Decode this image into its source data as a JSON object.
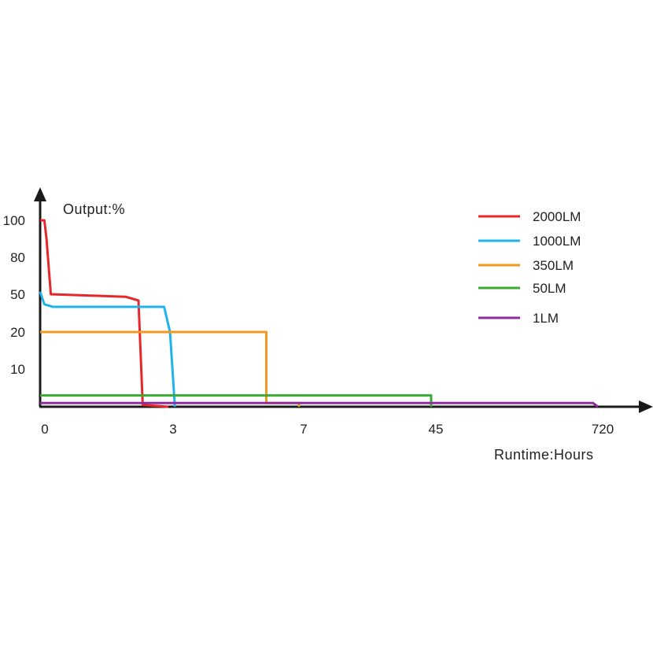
{
  "chart_data": {
    "type": "line",
    "title": "",
    "ylabel": "Output:%",
    "xlabel": "Runtime:Hours",
    "x_ticks": [
      "0",
      "3",
      "7",
      "45",
      "720"
    ],
    "y_ticks": [
      "100",
      "80",
      "50",
      "20",
      "10"
    ],
    "x_scale": "non-linear (ticks evenly labelled at 0, 3, 7, 45, 720)",
    "y_scale": "non-linear (ticks at 10, 20, 50, 80, 100)",
    "legend_position": "top-right",
    "grid": false,
    "series": [
      {
        "name": "2000LM",
        "color": "#e8262a",
        "points": [
          [
            0,
            100
          ],
          [
            0.1,
            100
          ],
          [
            0.15,
            90
          ],
          [
            0.25,
            50
          ],
          [
            2.0,
            48
          ],
          [
            2.3,
            45
          ],
          [
            2.4,
            0.5
          ],
          [
            3.0,
            0
          ]
        ]
      },
      {
        "name": "1000LM",
        "color": "#1fb3ea",
        "points": [
          [
            0,
            52
          ],
          [
            0.1,
            42
          ],
          [
            0.3,
            40
          ],
          [
            2.9,
            40
          ],
          [
            3.05,
            20
          ],
          [
            3.2,
            0
          ]
        ]
      },
      {
        "name": "350LM",
        "color": "#f39a1e",
        "points": [
          [
            0,
            20
          ],
          [
            6.0,
            20
          ],
          [
            6.0,
            1
          ],
          [
            7.0,
            1
          ],
          [
            7.0,
            0
          ]
        ]
      },
      {
        "name": "50LM",
        "color": "#3aaa35",
        "points": [
          [
            0,
            3
          ],
          [
            45,
            3
          ],
          [
            45,
            0
          ]
        ]
      },
      {
        "name": "1LM",
        "color": "#8e2d9e",
        "points": [
          [
            0,
            1
          ],
          [
            700,
            1
          ],
          [
            720,
            0
          ]
        ]
      }
    ]
  }
}
